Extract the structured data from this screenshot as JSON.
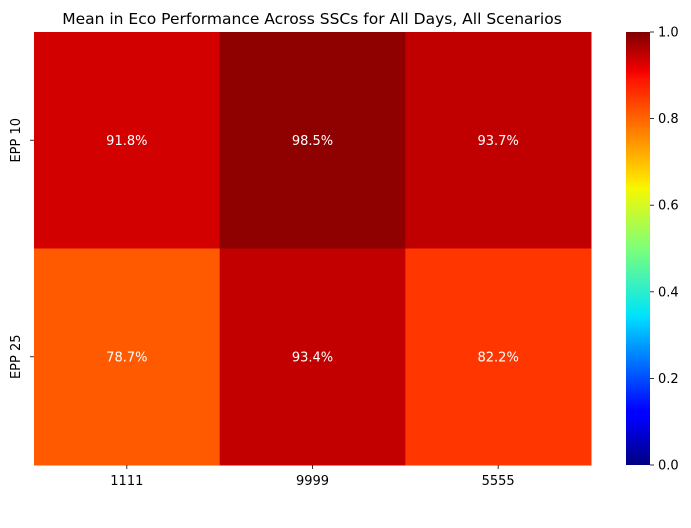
{
  "chart_data": {
    "type": "heatmap",
    "title": "Mean in Eco Performance Across SSCs for All Days, All Scenarios",
    "xlabel": "",
    "ylabel": "",
    "x_categories": [
      "1111",
      "9999",
      "5555"
    ],
    "y_categories": [
      "EPP 10",
      "EPP 25"
    ],
    "values": [
      [
        0.918,
        0.985,
        0.937
      ],
      [
        0.787,
        0.934,
        0.822
      ]
    ],
    "annotations": [
      [
        "91.8%",
        "98.5%",
        "93.7%"
      ],
      [
        "78.7%",
        "93.4%",
        "82.2%"
      ]
    ],
    "colormap": "jet",
    "vmin": 0.0,
    "vmax": 1.0,
    "colorbar_ticks": [
      {
        "value": 0.0,
        "label": "0.0"
      },
      {
        "value": 0.2,
        "label": "0.2"
      },
      {
        "value": 0.4,
        "label": "0.4"
      },
      {
        "value": 0.6,
        "label": "0.6"
      },
      {
        "value": 0.8,
        "label": "0.8"
      },
      {
        "value": 1.0,
        "label": "1.0"
      }
    ],
    "grid": false,
    "legend": "colorbar-right"
  }
}
